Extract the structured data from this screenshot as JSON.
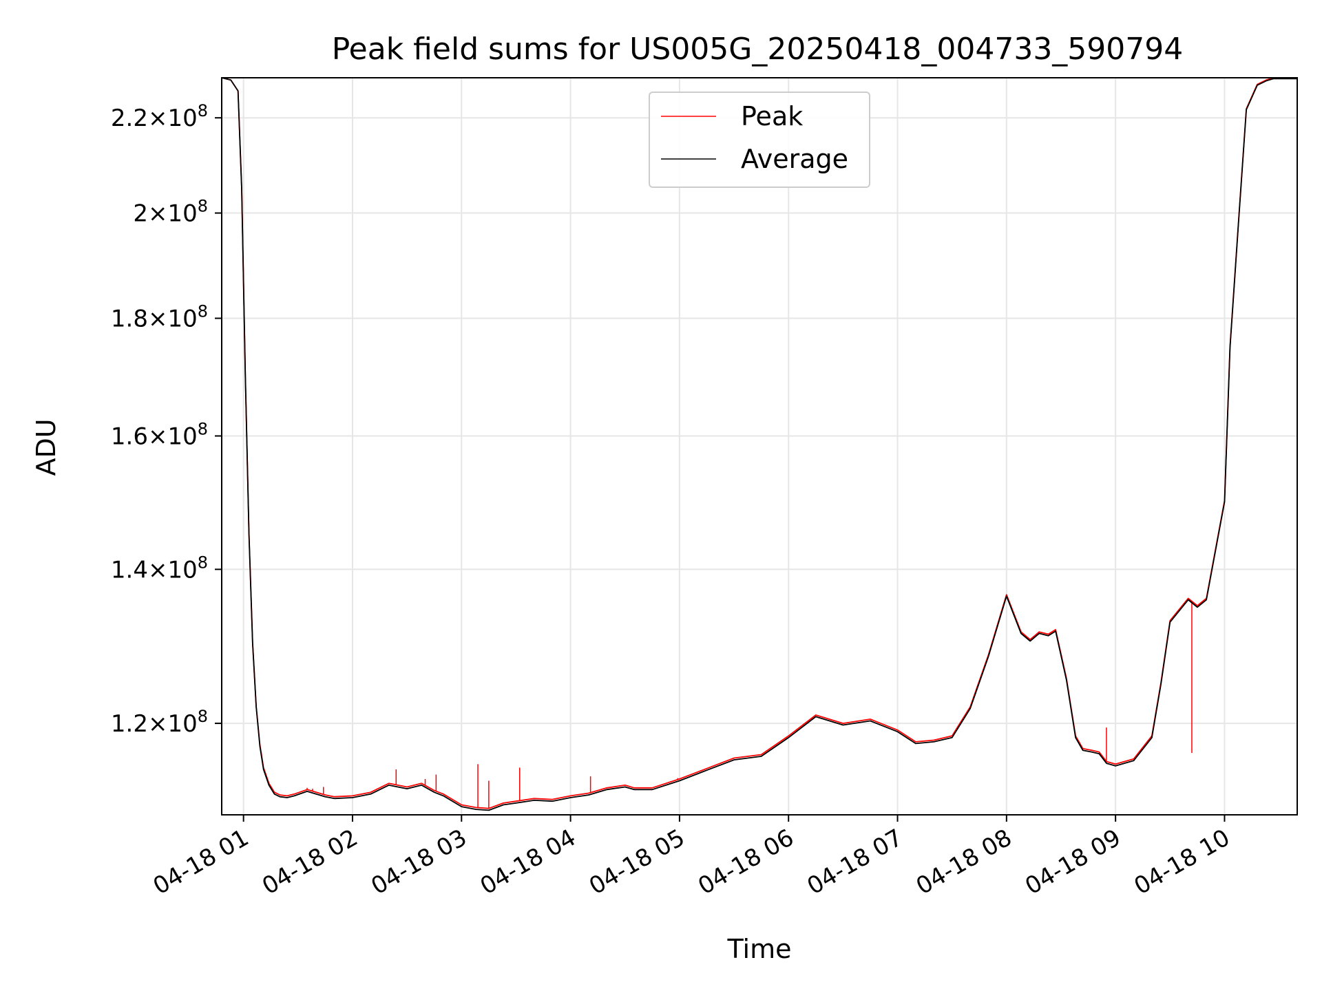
{
  "chart_data": {
    "type": "line",
    "title": "Peak field sums for US005G_20250418_004733_590794",
    "xlabel": "Time",
    "ylabel": "ADU",
    "yscale": "log",
    "grid": true,
    "legend": {
      "placement": "top-center",
      "entries": [
        "Peak",
        "Average"
      ]
    },
    "xlim": [
      "2025-04-18 00:48",
      "2025-04-18 10:40"
    ],
    "ylim": [
      109500000,
      229000000
    ],
    "x_ticks": [
      {
        "value": "2025-04-18 01:00",
        "label": "04-18 01"
      },
      {
        "value": "2025-04-18 02:00",
        "label": "04-18 02"
      },
      {
        "value": "2025-04-18 03:00",
        "label": "04-18 03"
      },
      {
        "value": "2025-04-18 04:00",
        "label": "04-18 04"
      },
      {
        "value": "2025-04-18 05:00",
        "label": "04-18 05"
      },
      {
        "value": "2025-04-18 06:00",
        "label": "04-18 06"
      },
      {
        "value": "2025-04-18 07:00",
        "label": "04-18 07"
      },
      {
        "value": "2025-04-18 08:00",
        "label": "04-18 08"
      },
      {
        "value": "2025-04-18 09:00",
        "label": "04-18 09"
      },
      {
        "value": "2025-04-18 10:00",
        "label": "04-18 10"
      }
    ],
    "y_ticks": [
      {
        "value": 120000000,
        "mantissa": "1.2",
        "exp": "8"
      },
      {
        "value": 140000000,
        "mantissa": "1.4",
        "exp": "8"
      },
      {
        "value": 160000000,
        "mantissa": "1.6",
        "exp": "8"
      },
      {
        "value": 180000000,
        "mantissa": "1.8",
        "exp": "8"
      },
      {
        "value": 200000000,
        "mantissa": "2",
        "exp": "8"
      },
      {
        "value": 220000000,
        "mantissa": "2.2",
        "exp": "8"
      }
    ],
    "series": [
      {
        "name": "Peak",
        "color": "#ff0000",
        "x": [
          "2025-04-18 00:48",
          "2025-04-18 00:53",
          "2025-04-18 00:57",
          "2025-04-18 00:59",
          "2025-04-18 01:01",
          "2025-04-18 01:03",
          "2025-04-18 01:05",
          "2025-04-18 01:07",
          "2025-04-18 01:09",
          "2025-04-18 01:11",
          "2025-04-18 01:14",
          "2025-04-18 01:17",
          "2025-04-18 01:20",
          "2025-04-18 01:24",
          "2025-04-18 01:28",
          "2025-04-18 01:35",
          "2025-04-18 01:45",
          "2025-04-18 01:50",
          "2025-04-18 02:00",
          "2025-04-18 02:10",
          "2025-04-18 02:20",
          "2025-04-18 02:30",
          "2025-04-18 02:38",
          "2025-04-18 02:45",
          "2025-04-18 02:50",
          "2025-04-18 03:00",
          "2025-04-18 03:08",
          "2025-04-18 03:15",
          "2025-04-18 03:23",
          "2025-04-18 03:30",
          "2025-04-18 03:40",
          "2025-04-18 03:50",
          "2025-04-18 04:00",
          "2025-04-18 04:10",
          "2025-04-18 04:20",
          "2025-04-18 04:30",
          "2025-04-18 04:35",
          "2025-04-18 04:45",
          "2025-04-18 05:00",
          "2025-04-18 05:15",
          "2025-04-18 05:30",
          "2025-04-18 05:45",
          "2025-04-18 06:00",
          "2025-04-18 06:15",
          "2025-04-18 06:30",
          "2025-04-18 06:45",
          "2025-04-18 07:00",
          "2025-04-18 07:10",
          "2025-04-18 07:20",
          "2025-04-18 07:30",
          "2025-04-18 07:40",
          "2025-04-18 07:50",
          "2025-04-18 08:00",
          "2025-04-18 08:08",
          "2025-04-18 08:13",
          "2025-04-18 08:18",
          "2025-04-18 08:23",
          "2025-04-18 08:27",
          "2025-04-18 08:33",
          "2025-04-18 08:38",
          "2025-04-18 08:42",
          "2025-04-18 08:47",
          "2025-04-18 08:51",
          "2025-04-18 08:55",
          "2025-04-18 09:00",
          "2025-04-18 09:10",
          "2025-04-18 09:20",
          "2025-04-18 09:25",
          "2025-04-18 09:30",
          "2025-04-18 09:40",
          "2025-04-18 09:45",
          "2025-04-18 09:50",
          "2025-04-18 10:00",
          "2025-04-18 10:03",
          "2025-04-18 10:08",
          "2025-04-18 10:12",
          "2025-04-18 10:18",
          "2025-04-18 10:23",
          "2025-04-18 10:27",
          "2025-04-18 10:30",
          "2025-04-18 10:33",
          "2025-04-18 10:35",
          "2025-04-18 10:40"
        ],
        "y": [
          229000000,
          228500000,
          226000000,
          205000000,
          170000000,
          145000000,
          130000000,
          122000000,
          117500000,
          114800000,
          113000000,
          112000000,
          111700000,
          111600000,
          111800000,
          112300000,
          111700000,
          111500000,
          111600000,
          112000000,
          113000000,
          112600000,
          113000000,
          112200000,
          111800000,
          110600000,
          110300000,
          110200000,
          110800000,
          111000000,
          111300000,
          111200000,
          111600000,
          111900000,
          112500000,
          112800000,
          112500000,
          112500000,
          113500000,
          114700000,
          115900000,
          116300000,
          118500000,
          121000000,
          120000000,
          120500000,
          119200000,
          117800000,
          118000000,
          118500000,
          122000000,
          128500000,
          136500000,
          131500000,
          130500000,
          131500000,
          131200000,
          131800000,
          125500000,
          118500000,
          117000000,
          116800000,
          116600000,
          115500000,
          115200000,
          115800000,
          118500000,
          125000000,
          133000000,
          136000000,
          135000000,
          136000000,
          150000000,
          175000000,
          200000000,
          222000000,
          227500000,
          228500000,
          229000000,
          229000000,
          229000000,
          229000000,
          229000000
        ],
        "spikes": [
          {
            "x": "2025-04-18 01:08",
            "y": 120000000
          },
          {
            "x": "2025-04-18 01:35",
            "y": 112500000
          },
          {
            "x": "2025-04-18 01:38",
            "y": 112400000
          },
          {
            "x": "2025-04-18 01:44",
            "y": 112600000
          },
          {
            "x": "2025-04-18 02:24",
            "y": 114600000
          },
          {
            "x": "2025-04-18 02:40",
            "y": 113500000
          },
          {
            "x": "2025-04-18 02:46",
            "y": 114000000
          },
          {
            "x": "2025-04-18 03:09",
            "y": 115200000
          },
          {
            "x": "2025-04-18 03:15",
            "y": 113300000
          },
          {
            "x": "2025-04-18 03:32",
            "y": 114800000
          },
          {
            "x": "2025-04-18 04:11",
            "y": 113800000
          },
          {
            "x": "2025-04-18 04:59",
            "y": 113600000
          },
          {
            "x": "2025-04-18 08:55",
            "y": 119500000
          },
          {
            "x": "2025-04-18 09:42",
            "y": 116500000
          }
        ]
      },
      {
        "name": "Average",
        "color": "#000000",
        "x": [
          "2025-04-18 00:48",
          "2025-04-18 00:53",
          "2025-04-18 00:57",
          "2025-04-18 00:59",
          "2025-04-18 01:01",
          "2025-04-18 01:03",
          "2025-04-18 01:05",
          "2025-04-18 01:07",
          "2025-04-18 01:09",
          "2025-04-18 01:11",
          "2025-04-18 01:14",
          "2025-04-18 01:17",
          "2025-04-18 01:20",
          "2025-04-18 01:24",
          "2025-04-18 01:28",
          "2025-04-18 01:35",
          "2025-04-18 01:45",
          "2025-04-18 01:50",
          "2025-04-18 02:00",
          "2025-04-18 02:10",
          "2025-04-18 02:20",
          "2025-04-18 02:30",
          "2025-04-18 02:38",
          "2025-04-18 02:45",
          "2025-04-18 02:50",
          "2025-04-18 03:00",
          "2025-04-18 03:08",
          "2025-04-18 03:15",
          "2025-04-18 03:23",
          "2025-04-18 03:30",
          "2025-04-18 03:40",
          "2025-04-18 03:50",
          "2025-04-18 04:00",
          "2025-04-18 04:10",
          "2025-04-18 04:20",
          "2025-04-18 04:30",
          "2025-04-18 04:35",
          "2025-04-18 04:45",
          "2025-04-18 05:00",
          "2025-04-18 05:15",
          "2025-04-18 05:30",
          "2025-04-18 05:45",
          "2025-04-18 06:00",
          "2025-04-18 06:15",
          "2025-04-18 06:30",
          "2025-04-18 06:45",
          "2025-04-18 07:00",
          "2025-04-18 07:10",
          "2025-04-18 07:20",
          "2025-04-18 07:30",
          "2025-04-18 07:40",
          "2025-04-18 07:50",
          "2025-04-18 08:00",
          "2025-04-18 08:08",
          "2025-04-18 08:13",
          "2025-04-18 08:18",
          "2025-04-18 08:23",
          "2025-04-18 08:27",
          "2025-04-18 08:33",
          "2025-04-18 08:38",
          "2025-04-18 08:42",
          "2025-04-18 08:47",
          "2025-04-18 08:51",
          "2025-04-18 08:55",
          "2025-04-18 09:00",
          "2025-04-18 09:10",
          "2025-04-18 09:20",
          "2025-04-18 09:25",
          "2025-04-18 09:30",
          "2025-04-18 09:40",
          "2025-04-18 09:45",
          "2025-04-18 09:50",
          "2025-04-18 10:00",
          "2025-04-18 10:03",
          "2025-04-18 10:08",
          "2025-04-18 10:12",
          "2025-04-18 10:18",
          "2025-04-18 10:23",
          "2025-04-18 10:27",
          "2025-04-18 10:30",
          "2025-04-18 10:33",
          "2025-04-18 10:35",
          "2025-04-18 10:40"
        ],
        "y": [
          229000000,
          228500000,
          226000000,
          205000000,
          170000000,
          145000000,
          130000000,
          122000000,
          117300000,
          114600000,
          112800000,
          111800000,
          111500000,
          111400000,
          111600000,
          112100000,
          111500000,
          111300000,
          111400000,
          111800000,
          112800000,
          112400000,
          112800000,
          112000000,
          111600000,
          110400000,
          110100000,
          110000000,
          110600000,
          110800000,
          111100000,
          111000000,
          111400000,
          111700000,
          112300000,
          112600000,
          112300000,
          112300000,
          113300000,
          114500000,
          115700000,
          116100000,
          118300000,
          120800000,
          119800000,
          120300000,
          119000000,
          117600000,
          117800000,
          118300000,
          121800000,
          128300000,
          136300000,
          131300000,
          130300000,
          131300000,
          131000000,
          131600000,
          125300000,
          118300000,
          116800000,
          116600000,
          116400000,
          115300000,
          115000000,
          115600000,
          118300000,
          124800000,
          132800000,
          135800000,
          134800000,
          135800000,
          149800000,
          174800000,
          199800000,
          221800000,
          227300000,
          228300000,
          228800000,
          228800000,
          228800000,
          228800000,
          228800000
        ]
      }
    ]
  }
}
